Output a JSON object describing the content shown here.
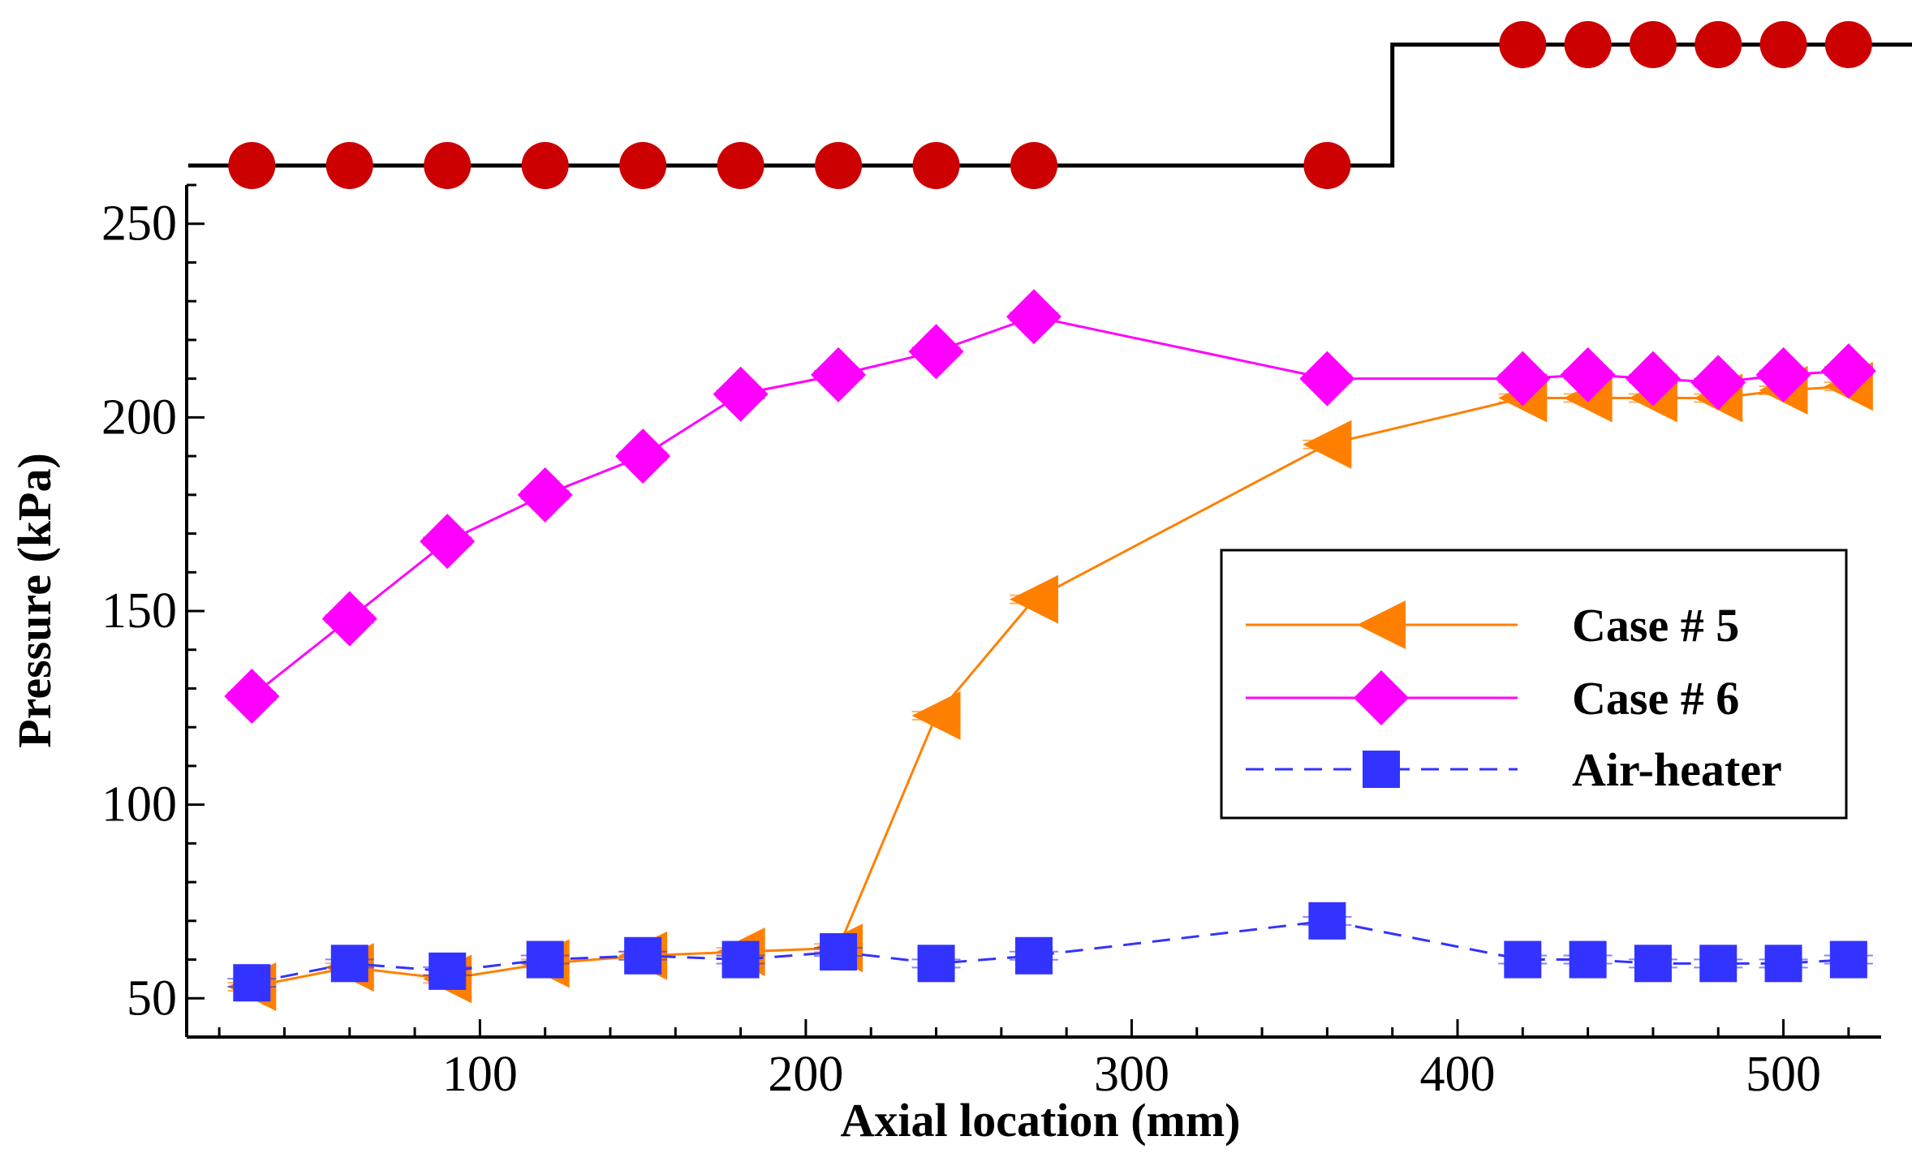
{
  "chart_data": {
    "type": "line",
    "title": "",
    "xlabel": "Axial location (mm)",
    "ylabel": "Pressure (kPa)",
    "xlim": [
      10,
      530
    ],
    "ylim": [
      40,
      260
    ],
    "xticks": [
      100,
      200,
      300,
      400,
      500
    ],
    "yticks": [
      50,
      100,
      150,
      200,
      250
    ],
    "grid": false,
    "legend_position": "center-right",
    "series": [
      {
        "name": "Case # 5",
        "color": "#ff8000",
        "marker": "triangle-left",
        "line": "solid",
        "x": [
          30,
          60,
          90,
          120,
          150,
          180,
          210,
          240,
          270,
          360,
          420,
          440,
          460,
          480,
          500,
          520
        ],
        "y": [
          53,
          58,
          55,
          59,
          61,
          62,
          63,
          123,
          153,
          193,
          205,
          205,
          205,
          205,
          207,
          208
        ]
      },
      {
        "name": "Case # 6",
        "color": "#ff00ff",
        "marker": "diamond",
        "line": "solid",
        "x": [
          30,
          60,
          90,
          120,
          150,
          180,
          210,
          240,
          270,
          360,
          420,
          440,
          460,
          480,
          500,
          520
        ],
        "y": [
          128,
          148,
          168,
          180,
          190,
          206,
          211,
          217,
          226,
          210,
          210,
          211,
          210,
          209,
          211,
          212
        ]
      },
      {
        "name": "Air-heater",
        "color": "#3333ff",
        "marker": "square",
        "line": "dashed",
        "x": [
          30,
          60,
          90,
          120,
          150,
          180,
          210,
          240,
          270,
          360,
          420,
          440,
          460,
          480,
          500,
          520
        ],
        "y": [
          54,
          59,
          57,
          60,
          61,
          60,
          62,
          59,
          61,
          70,
          60,
          60,
          59,
          59,
          59,
          60
        ]
      }
    ],
    "annotations": {
      "description": "Geometry profile drawn above the plot with sensor port markers",
      "profile_line_color": "#000000",
      "port_color": "#cc0000",
      "step_x": 380,
      "lower_level_ports_x": [
        30,
        60,
        90,
        120,
        150,
        180,
        210,
        240,
        270,
        360
      ],
      "upper_level_ports_x": [
        420,
        440,
        460,
        480,
        500,
        520
      ]
    }
  }
}
